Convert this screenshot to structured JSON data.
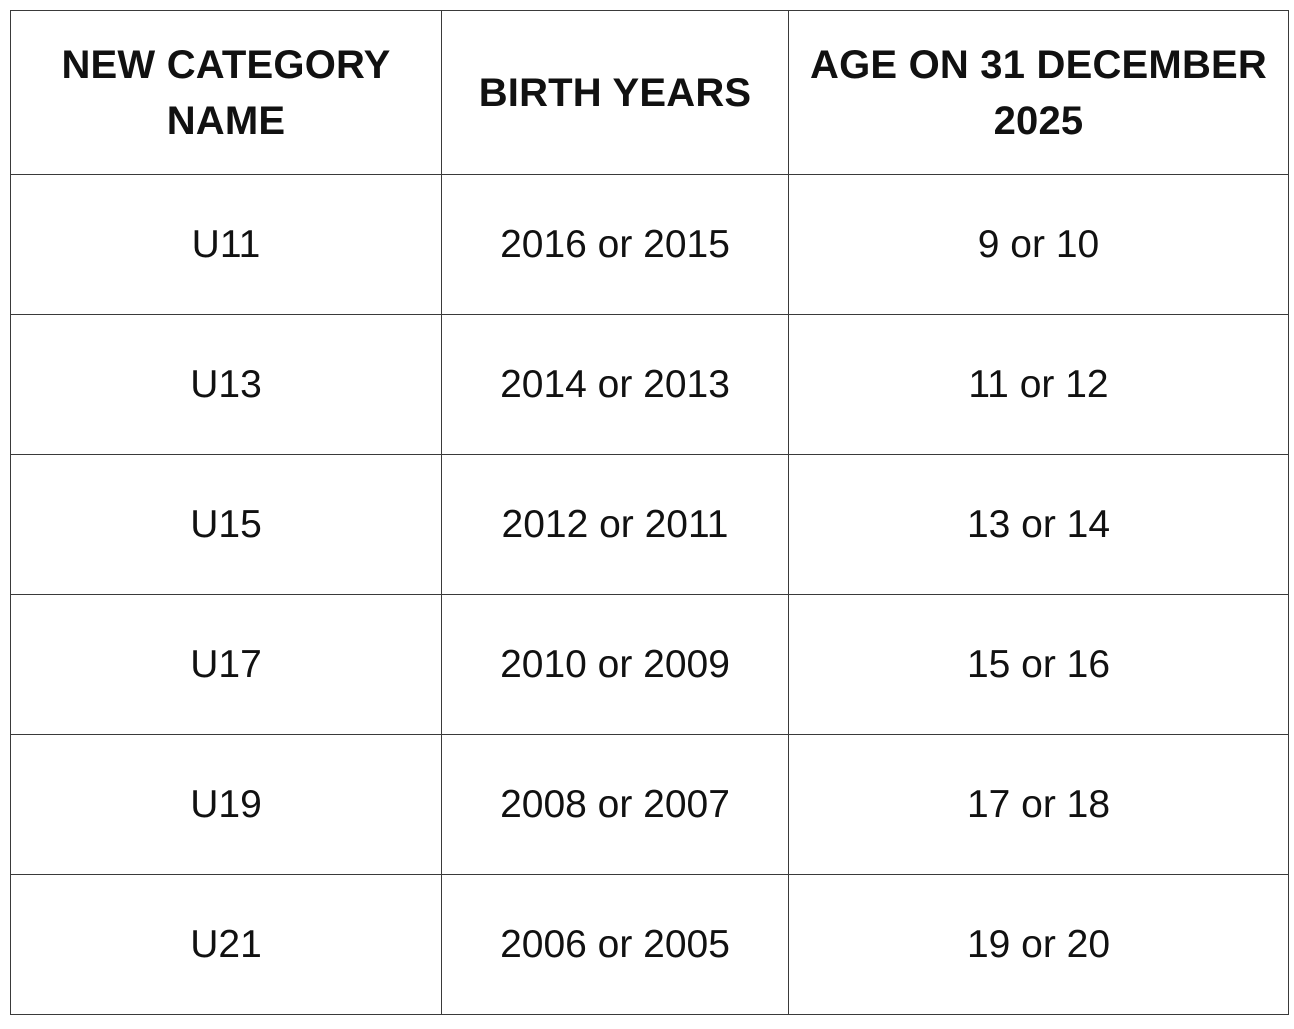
{
  "table": {
    "headers": [
      "NEW CATEGORY NAME",
      "BIRTH YEARS",
      "AGE ON 31 DECEMBER 2025"
    ],
    "rows": [
      [
        "U11",
        "2016 or 2015",
        "9 or 10"
      ],
      [
        "U13",
        "2014 or 2013",
        "11 or 12"
      ],
      [
        "U15",
        "2012 or 2011",
        "13 or 14"
      ],
      [
        "U17",
        "2010 or 2009",
        "15 or 16"
      ],
      [
        "U19",
        "2008 or 2007",
        "17 or 18"
      ],
      [
        "U21",
        "2006 or 2005",
        "19 or 20"
      ]
    ]
  },
  "colors": {
    "text": "#111111",
    "border": "#3a3a3a",
    "background": "#ffffff"
  }
}
